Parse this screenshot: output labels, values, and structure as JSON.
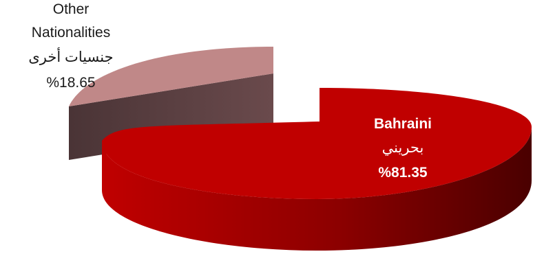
{
  "chart_data": {
    "type": "pie",
    "title": "",
    "series": [
      {
        "name_en": "Bahraini",
        "name_ar": "بحريني",
        "value": 81.35,
        "value_label": "%81.35",
        "color": "#c00000"
      },
      {
        "name_en_line1": "Other",
        "name_en_line2": "Nationalities",
        "name_ar": "جنسيات أخرى",
        "value": 18.65,
        "value_label": "%18.65",
        "color": "#c08888"
      }
    ],
    "legend": "none",
    "style": "3d-exploded"
  }
}
